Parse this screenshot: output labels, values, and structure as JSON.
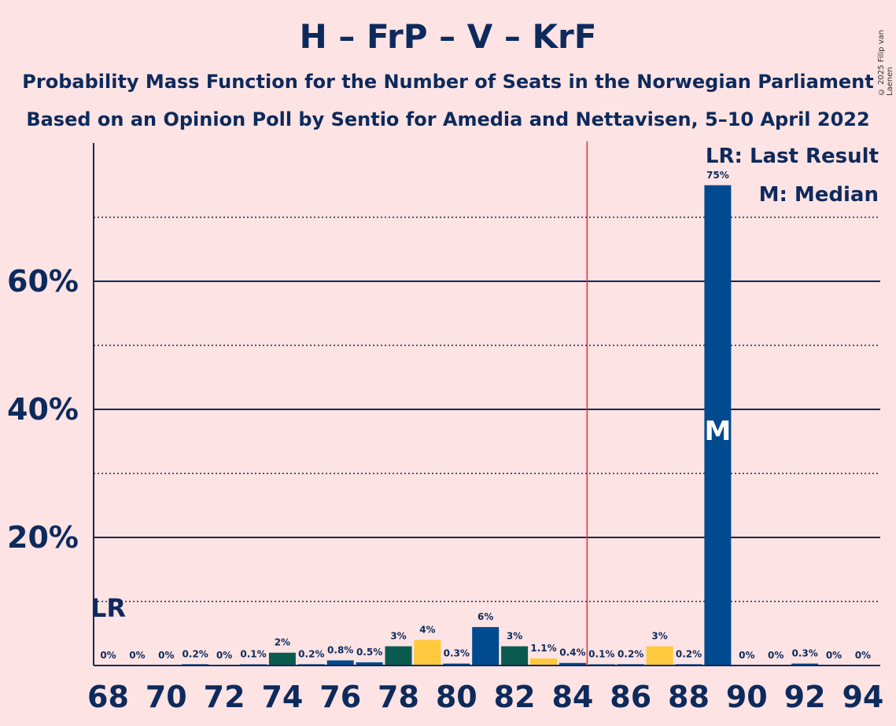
{
  "header": {
    "title": "H – FrP – V – KrF",
    "subtitle1": "Probability Mass Function for the Number of Seats in the Norwegian Parliament",
    "subtitle2": "Based on an Opinion Poll by Sentio for Amedia and Nettavisen, 5–10 April 2022",
    "copyright": "© 2025 Filip van Laenen"
  },
  "legend": {
    "lr": "LR: Last Result",
    "m": "M: Median"
  },
  "markers": {
    "lr_label": "LR",
    "median_label": "M"
  },
  "colors": {
    "background": "#fde3e3",
    "H": "#004a8f",
    "FrP": "#004a8f",
    "V": "#0b5a50",
    "KrF": "#ffc93d",
    "majority_line": "#e03030",
    "axis": "#0d2a5c"
  },
  "chart_data": {
    "type": "bar",
    "x": [
      68,
      69,
      70,
      71,
      72,
      73,
      74,
      75,
      76,
      77,
      78,
      79,
      80,
      81,
      82,
      83,
      84,
      85,
      86,
      87,
      88,
      89,
      90,
      91,
      92,
      93,
      94
    ],
    "values": [
      0,
      0,
      0,
      0.2,
      0,
      0.1,
      2,
      0.2,
      0.8,
      0.5,
      3,
      4,
      0.3,
      6,
      3,
      1.1,
      0.4,
      0.1,
      0.2,
      3,
      0.2,
      75,
      0,
      0,
      0.3,
      0,
      0
    ],
    "labels": [
      "0%",
      "0%",
      "0%",
      "0.2%",
      "0%",
      "0.1%",
      "2%",
      "0.2%",
      "0.8%",
      "0.5%",
      "3%",
      "4%",
      "0.3%",
      "6%",
      "3%",
      "1.1%",
      "0.4%",
      "0.1%",
      "0.2%",
      "3%",
      "0.2%",
      "75%",
      "0%",
      "0%",
      "0.3%",
      "0%",
      "0%"
    ],
    "bar_colors": [
      "#004a8f",
      "#004a8f",
      "#004a8f",
      "#004a8f",
      "#004a8f",
      "#004a8f",
      "#0b5a50",
      "#004a8f",
      "#004a8f",
      "#004a8f",
      "#0b5a50",
      "#ffc93d",
      "#004a8f",
      "#004a8f",
      "#0b5a50",
      "#ffc93d",
      "#004a8f",
      "#004a8f",
      "#004a8f",
      "#ffc93d",
      "#004a8f",
      "#004a8f",
      "#004a8f",
      "#004a8f",
      "#004a8f",
      "#004a8f",
      "#004a8f"
    ],
    "x_tick_labels": [
      "68",
      "70",
      "72",
      "74",
      "76",
      "78",
      "80",
      "82",
      "84",
      "86",
      "88",
      "90",
      "92",
      "94"
    ],
    "x_ticks": [
      68,
      70,
      72,
      74,
      76,
      78,
      80,
      82,
      84,
      86,
      88,
      90,
      92,
      94
    ],
    "y_ticks_major": [
      20,
      40,
      60
    ],
    "y_tick_labels": [
      "20%",
      "40%",
      "60%"
    ],
    "y_ticks_minor": [
      10,
      30,
      50,
      70
    ],
    "ylim": [
      0,
      82
    ],
    "majority_seat": 85,
    "last_result_seat": 68,
    "median_seat": 89,
    "grid": true,
    "legend_position": "top-right"
  }
}
